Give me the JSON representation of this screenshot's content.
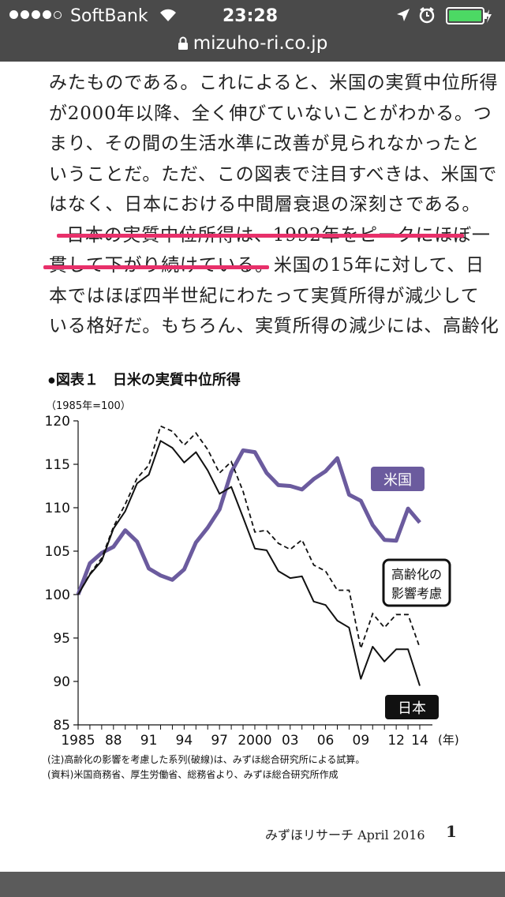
{
  "status": {
    "carrier": "SoftBank",
    "time": "23:28",
    "url": "mizuho-ri.co.jp"
  },
  "article": {
    "lines": [
      "みたものである。これによると、米国の実質中位所得",
      "が2000年以降、全く伸びていないことがわかる。つ",
      "まり、その間の生活水準に改善が見られなかったと",
      "いうことだ。ただ、この図表で注目すべきは、米国で",
      "はなく、日本における中間層衰退の深刻さである。",
      "日本の実質中位所得は、1992年をピークにほぼ一",
      "貫して下がり続けている。米国の15年に対して、日",
      "本ではほぼ四半世紀にわたって実質所得が減少して",
      "いる格好だ。もちろん、実質所得の減少には、高齢化"
    ]
  },
  "footer": {
    "publication": "みずほリサーチ April 2016",
    "page": "1"
  },
  "colors": {
    "us": "#6b5b9e",
    "highlight": "#e8306a",
    "japan": "#111111"
  },
  "chart_data": {
    "type": "line",
    "title": "●図表１　日米の実質中位所得",
    "unit": "（1985年=100）",
    "x": [
      1985,
      1986,
      1987,
      1988,
      1989,
      1990,
      1991,
      1992,
      1993,
      1994,
      1995,
      1996,
      1997,
      1998,
      1999,
      2000,
      2001,
      2002,
      2003,
      2004,
      2005,
      2006,
      2007,
      2008,
      2009,
      2010,
      2011,
      2012,
      2013,
      2014
    ],
    "x_tick_labels": [
      "1985",
      "88",
      "91",
      "94",
      "97",
      "2000",
      "03",
      "06",
      "09",
      "12",
      "14"
    ],
    "x_ticks": [
      1985,
      1988,
      1991,
      1994,
      1997,
      2000,
      2003,
      2006,
      2009,
      2012,
      2014
    ],
    "x_unit": "(年)",
    "ylim": [
      85,
      120
    ],
    "y_ticks": [
      85,
      90,
      95,
      100,
      105,
      110,
      115,
      120
    ],
    "series": [
      {
        "name": "米国",
        "style": "thick",
        "x_start": 1985,
        "values": [
          100,
          103.6,
          104.8,
          105.5,
          107.4,
          106.1,
          103,
          102.2,
          101.7,
          102.9,
          106,
          107.7,
          109.8,
          114.1,
          116.6,
          116.4,
          114,
          112.6,
          112.5,
          112.1,
          113.3,
          114.2,
          115.7,
          111.5,
          110.8,
          108,
          106.3,
          106.2,
          109.9,
          108.3
        ]
      },
      {
        "name": "日本",
        "style": "solid",
        "x_start": 1985,
        "values": [
          100,
          102.3,
          103.9,
          107.6,
          109.6,
          112.8,
          113.8,
          117.7,
          116.9,
          115.2,
          116.4,
          114.3,
          111.6,
          112.4,
          108.9,
          105.3,
          105.1,
          102.7,
          101.9,
          102.1,
          99.2,
          98.8,
          97,
          96.2,
          90.3,
          94,
          92.3,
          93.7,
          93.7,
          89.5
        ]
      },
      {
        "name": "高齢化の影響考慮",
        "style": "dashed",
        "x_start": 1985,
        "values": [
          100,
          102.4,
          104.2,
          107.8,
          110.4,
          113.4,
          114.9,
          119.4,
          118.8,
          117.2,
          118.6,
          116.7,
          114,
          115.3,
          111.9,
          107.2,
          107.4,
          105.9,
          105.2,
          106.3,
          103.4,
          102.7,
          100.5,
          100.5,
          93.8,
          97.8,
          96.2,
          97.7,
          97.7,
          93.9
        ]
      }
    ],
    "notes": [
      "(注)高齢化の影響を考慮した系列(破線)は、みずほ総合研究所による試算。",
      "(資料)米国商務省、厚生労働省、総務省より、みずほ総合研究所作成"
    ]
  }
}
